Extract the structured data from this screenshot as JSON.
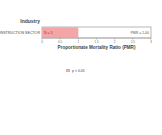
{
  "chart_data": {
    "type": "bar",
    "orientation": "horizontal",
    "title": "Industry",
    "x_label": "Proportionate Mortality Ratio (PMR)",
    "categories": [
      "CONSTRUCTION SECTOR"
    ],
    "series": [
      {
        "name": "p > 0.05",
        "color": "#f4a6a6",
        "values": [
          1.0
        ],
        "value_labels": [
          "PMR = 1.00"
        ]
      }
    ],
    "annotations": [
      "N = 3"
    ],
    "xlim": [
      0,
      3
    ],
    "xticks": [
      0,
      0.5,
      1,
      1.5,
      2,
      2.5,
      3
    ],
    "data_labels": true,
    "legend": "bottom",
    "grid": false
  }
}
